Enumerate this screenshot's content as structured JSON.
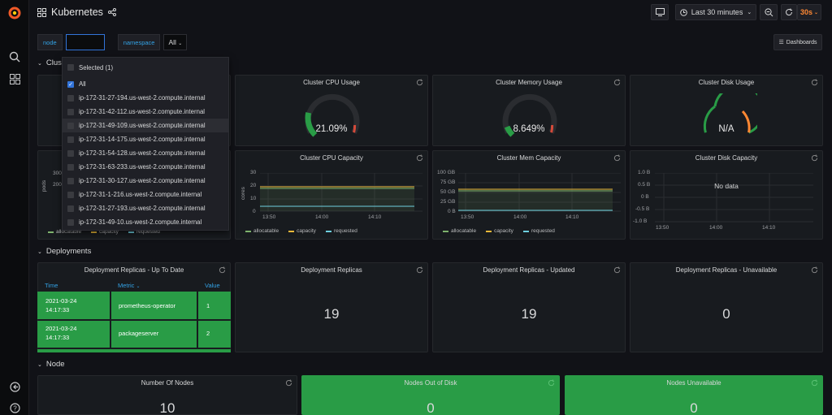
{
  "header": {
    "title": "Kubernetes",
    "time_range": "Last 30 minutes",
    "refresh_interval": "30s",
    "dashboards_label": "Dashboards"
  },
  "variables": {
    "node_label": "node",
    "node_value": "",
    "namespace_label": "namespace",
    "namespace_value": "All"
  },
  "dropdown": {
    "selected_label": "Selected (1)",
    "items": [
      {
        "label": "All",
        "checked": true
      },
      {
        "label": "ip-172-31-27-194.us-west-2.compute.internal",
        "checked": false
      },
      {
        "label": "ip-172-31-42-112.us-west-2.compute.internal",
        "checked": false
      },
      {
        "label": "ip-172-31-49-109.us-west-2.compute.internal",
        "checked": false
      },
      {
        "label": "ip-172-31-14-175.us-west-2.compute.internal",
        "checked": false
      },
      {
        "label": "ip-172-31-54-128.us-west-2.compute.internal",
        "checked": false
      },
      {
        "label": "ip-172-31-63-233.us-west-2.compute.internal",
        "checked": false
      },
      {
        "label": "ip-172-31-30-127.us-west-2.compute.internal",
        "checked": false
      },
      {
        "label": "ip-172-31-1-216.us-west-2.compute.internal",
        "checked": false
      },
      {
        "label": "ip-172-31-27-193.us-west-2.compute.internal",
        "checked": false
      },
      {
        "label": "ip-172-31-49-10.us-west-2.compute.internal",
        "checked": false
      }
    ]
  },
  "rows": {
    "cluster": "Clust",
    "deployments": "Deployments",
    "node": "Node"
  },
  "cluster": {
    "cpu_usage": {
      "title": "Cluster CPU Usage",
      "value": "21.09%",
      "fraction": 0.2109
    },
    "memory_usage": {
      "title": "Cluster Memory Usage",
      "value": "8.649%",
      "fraction": 0.0865
    },
    "disk_usage": {
      "title": "Cluster Disk Usage",
      "value": "N/A"
    },
    "pod_capacity": {
      "y_label": "pods",
      "y_ticks": [
        "300",
        "200"
      ],
      "legend": [
        "allocatable",
        "capacity",
        "requested"
      ]
    },
    "cpu_capacity": {
      "title": "Cluster CPU Capacity",
      "y_label": "cores",
      "y_ticks": [
        "30",
        "20",
        "10",
        "0"
      ],
      "x_ticks": [
        "13:50",
        "14:00",
        "14:10"
      ],
      "legend": [
        "allocatable",
        "capacity",
        "requested"
      ]
    },
    "mem_capacity": {
      "title": "Cluster Mem Capacity",
      "y_ticks": [
        "100 GB",
        "75 GB",
        "50 GB",
        "25 GB",
        "0 B"
      ],
      "x_ticks": [
        "13:50",
        "14:00",
        "14:10"
      ],
      "legend": [
        "allocatable",
        "capacity",
        "requested"
      ]
    },
    "disk_capacity": {
      "title": "Cluster Disk Capacity",
      "no_data": "No data",
      "y_ticks": [
        "1.0 B",
        "0.5 B",
        "0 B",
        "-0.5 B",
        "-1.0 B"
      ],
      "x_ticks": [
        "13:50",
        "14:00",
        "14:10"
      ]
    }
  },
  "deployments": {
    "table": {
      "title": "Deployment Replicas - Up To Date",
      "columns": [
        "Time",
        "Metric",
        "Value"
      ],
      "rows": [
        {
          "date": "2021-03-24",
          "time": "14:17:33",
          "metric": "prometheus-operator",
          "value": "1"
        },
        {
          "date": "2021-03-24",
          "time": "14:17:33",
          "metric": "packageserver",
          "value": "2"
        }
      ]
    },
    "replicas": {
      "title": "Deployment Replicas",
      "value": "19"
    },
    "updated": {
      "title": "Deployment Replicas - Updated",
      "value": "19"
    },
    "unavailable": {
      "title": "Deployment Replicas - Unavailable",
      "value": "0"
    }
  },
  "node": {
    "count": {
      "title": "Number Of Nodes",
      "value": "10"
    },
    "out_of_disk": {
      "title": "Nodes Out of Disk",
      "value": "0"
    },
    "unavailable": {
      "title": "Nodes Unavailable",
      "value": "0"
    }
  },
  "colors": {
    "accent_orange": "#ff8833",
    "link_blue": "#33a2e5",
    "ok_green": "#299c46",
    "allocatable": "#7eb26d",
    "capacity": "#eab839",
    "requested": "#6ed0e0"
  }
}
